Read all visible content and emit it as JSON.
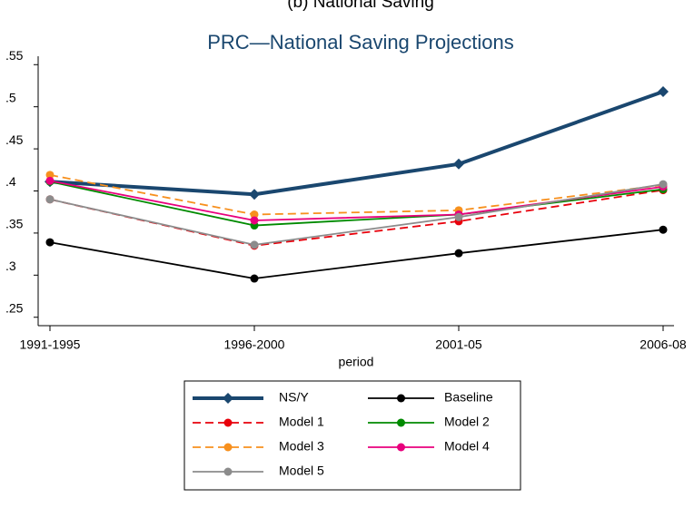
{
  "chart_data": {
    "type": "line",
    "subtitle": "(b) National Saving",
    "title": "PRC—National Saving Projections",
    "x_label": "period",
    "categories": [
      "1991-1995",
      "1996-2000",
      "2001-05",
      "2006-08"
    ],
    "ylim": [
      0.24,
      0.56
    ],
    "yticks": [
      {
        "value": 0.25,
        "label": ".25"
      },
      {
        "value": 0.3,
        "label": ".3"
      },
      {
        "value": 0.35,
        "label": ".35"
      },
      {
        "value": 0.4,
        "label": ".4"
      },
      {
        "value": 0.45,
        "label": ".45"
      },
      {
        "value": 0.5,
        "label": ".5"
      },
      {
        "value": 0.55,
        "label": ".55"
      }
    ],
    "grid": false,
    "series": [
      {
        "name": "NS/Y",
        "color": "#1a476f",
        "values": [
          0.411,
          0.396,
          0.432,
          0.518
        ],
        "marker": "diamond",
        "thick": true,
        "dashed": false
      },
      {
        "name": "Baseline",
        "color": "#000000",
        "values": [
          0.339,
          0.296,
          0.326,
          0.354
        ],
        "marker": "circle",
        "thick": false,
        "dashed": false
      },
      {
        "name": "Model 1",
        "color": "#e8000b",
        "values": [
          0.39,
          0.335,
          0.364,
          0.401
        ],
        "marker": "circle",
        "thick": false,
        "dashed": true
      },
      {
        "name": "Model 2",
        "color": "#008a00",
        "values": [
          0.411,
          0.359,
          0.372,
          0.402
        ],
        "marker": "circle",
        "thick": false,
        "dashed": false
      },
      {
        "name": "Model 3",
        "color": "#f7901e",
        "values": [
          0.419,
          0.372,
          0.377,
          0.407
        ],
        "marker": "circle",
        "thick": false,
        "dashed": true
      },
      {
        "name": "Model 4",
        "color": "#e8007d",
        "values": [
          0.412,
          0.365,
          0.372,
          0.405
        ],
        "marker": "circle",
        "thick": false,
        "dashed": false
      },
      {
        "name": "Model 5",
        "color": "#8c8c8c",
        "values": [
          0.39,
          0.336,
          0.369,
          0.408
        ],
        "marker": "circle",
        "thick": false,
        "dashed": false
      }
    ]
  }
}
